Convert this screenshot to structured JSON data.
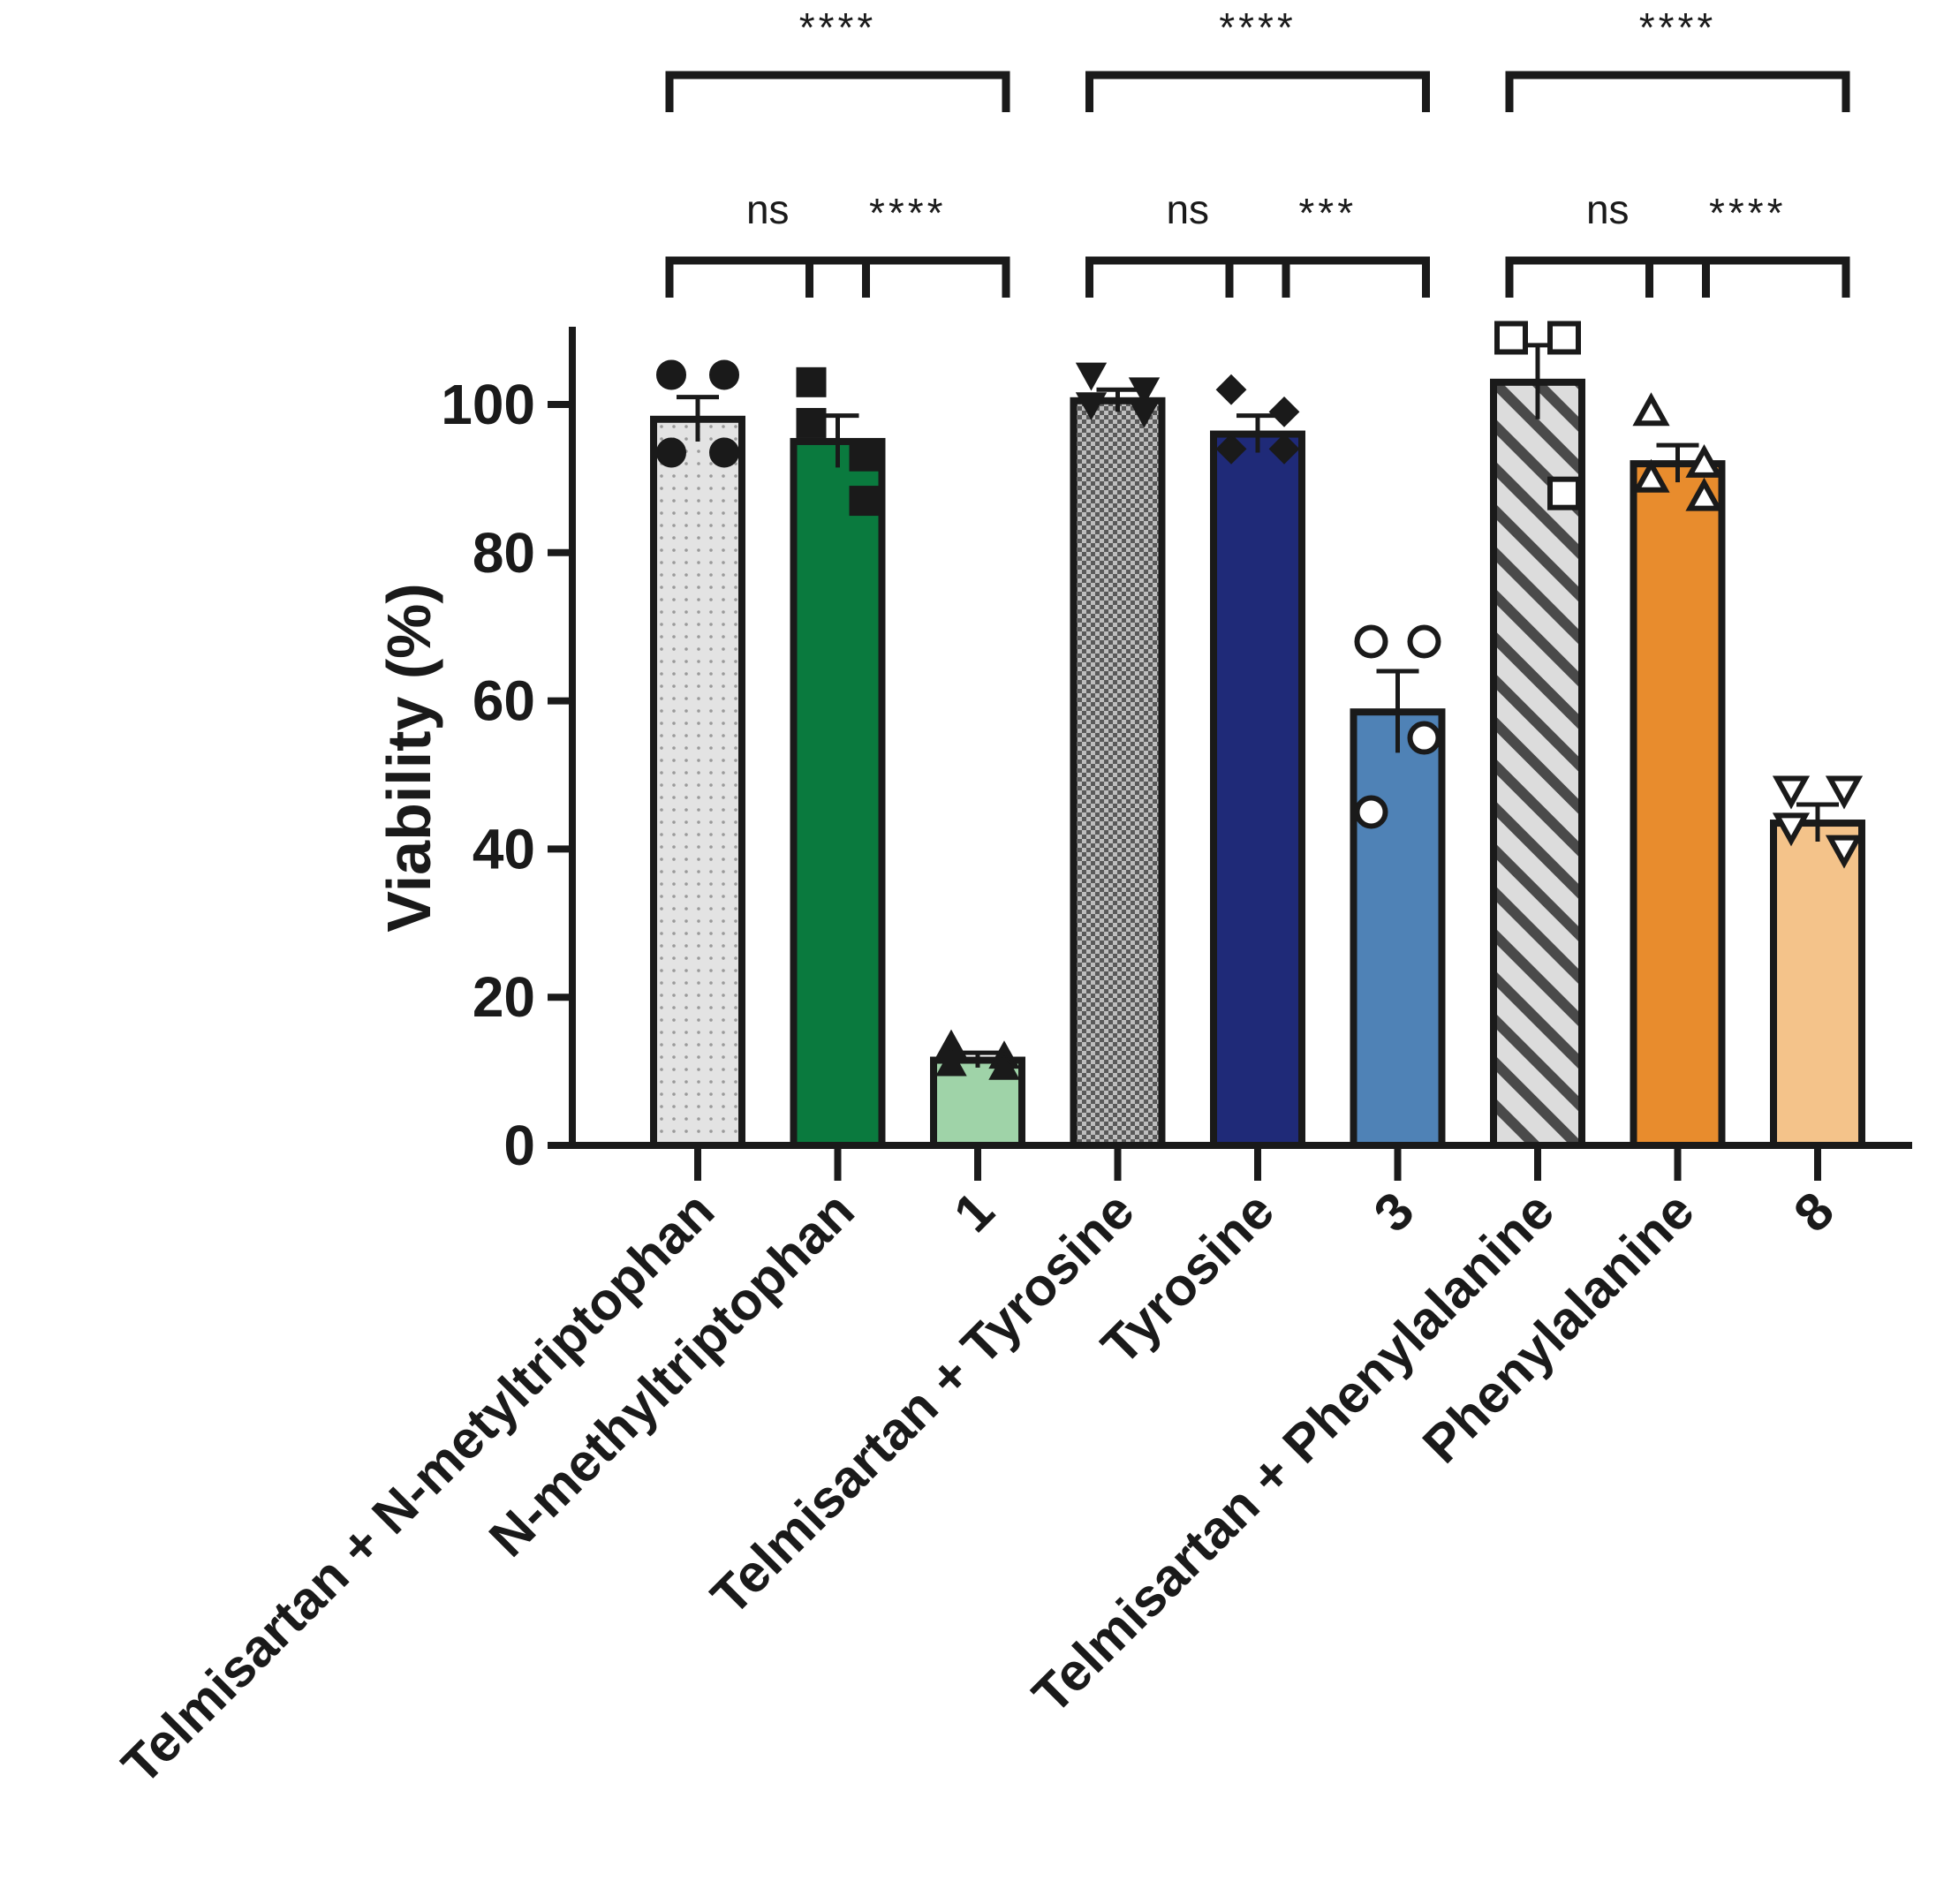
{
  "chart_data": {
    "type": "bar",
    "ylabel": "Viability (%)",
    "xlabel": "",
    "ylim": [
      0,
      110
    ],
    "yticks": [
      0,
      20,
      40,
      60,
      80,
      100
    ],
    "grid": false,
    "categories": [
      "Telmisartan + N-metyltriptophan",
      "N-methyltriptophan",
      "1",
      "Telmisartan + Tyrosine",
      "Tyrosine",
      "3",
      "Telmisartan + Phenylalanine",
      "Phenylalanine",
      "8"
    ],
    "values": [
      98,
      95,
      11.5,
      100.5,
      96,
      58.5,
      103,
      92,
      43.5
    ],
    "errors": [
      3,
      3.5,
      1,
      1.5,
      2.5,
      5.5,
      5,
      2.5,
      2.5
    ],
    "points": [
      [
        104,
        104,
        93.5,
        93.5
      ],
      [
        103,
        93,
        97.5,
        87
      ],
      [
        13.5,
        12,
        11,
        10.5
      ],
      [
        104,
        102,
        100,
        99
      ],
      [
        102,
        99,
        94,
        94
      ],
      [
        68,
        68,
        45,
        55
      ],
      [
        109,
        109,
        109,
        88
      ],
      [
        99,
        92,
        90,
        87.5
      ],
      [
        48,
        48,
        43,
        40
      ]
    ],
    "bar_colors": [
      "#e3e3e3",
      "#0a7a3e",
      "#9fd3a8",
      "#d3d3d3",
      "#1f2a78",
      "#4f82b6",
      "#dcdcdc",
      "#e88c2d",
      "#f4c38a"
    ],
    "bar_patterns": [
      "dots",
      "solid",
      "solid",
      "checker",
      "solid",
      "solid",
      "stripes",
      "solid",
      "solid"
    ],
    "marker_shapes": [
      "circle-filled",
      "square-filled",
      "triangle-filled",
      "triangle-down-filled",
      "diamond-filled",
      "circle-open",
      "square-open",
      "triangle-open",
      "triangle-down-open"
    ],
    "comparisons": [
      {
        "from": 0,
        "to": 2,
        "label": "****",
        "level": "top"
      },
      {
        "from": 3,
        "to": 5,
        "label": "****",
        "level": "top"
      },
      {
        "from": 6,
        "to": 8,
        "label": "****",
        "level": "top"
      },
      {
        "from": 0,
        "to": 1,
        "label": "ns",
        "level": "lower"
      },
      {
        "from": 1,
        "to": 2,
        "label": "****",
        "level": "lower"
      },
      {
        "from": 3,
        "to": 4,
        "label": "ns",
        "level": "lower"
      },
      {
        "from": 4,
        "to": 5,
        "label": "***",
        "level": "lower"
      },
      {
        "from": 6,
        "to": 7,
        "label": "ns",
        "level": "lower"
      },
      {
        "from": 7,
        "to": 8,
        "label": "****",
        "level": "lower"
      }
    ]
  }
}
